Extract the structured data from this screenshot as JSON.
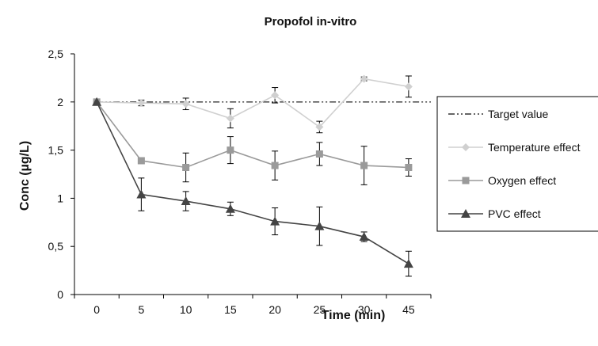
{
  "chart_data": {
    "type": "line",
    "title": "Propofol in-vitro",
    "xlabel": "Time (min)",
    "ylabel": "Conc (µg/L)",
    "categories": [
      "0",
      "5",
      "10",
      "15",
      "20",
      "25",
      "30",
      "45"
    ],
    "y_ticks": [
      "0",
      "0,5",
      "1",
      "1,5",
      "2",
      "2,5"
    ],
    "ylim": [
      0,
      2.5
    ],
    "grid": false,
    "legend_position": "right",
    "series": [
      {
        "name": "Target value",
        "style": "dash-dot",
        "color": "#333333",
        "values": [
          2,
          2,
          2,
          2,
          2,
          2,
          2,
          2
        ],
        "errors": null
      },
      {
        "name": "Temperature effect",
        "marker": "diamond",
        "color": "#d0d0d0",
        "values": [
          2.0,
          1.99,
          1.98,
          1.83,
          2.07,
          1.74,
          2.24,
          2.16
        ],
        "errors": [
          0,
          0.03,
          0.06,
          0.1,
          0.08,
          0.06,
          0.02,
          0.11
        ]
      },
      {
        "name": "Oxygen effect",
        "marker": "square",
        "color": "#9a9a9a",
        "values": [
          2.0,
          1.39,
          1.32,
          1.5,
          1.34,
          1.46,
          1.34,
          1.32
        ],
        "errors": [
          0,
          0.03,
          0.15,
          0.14,
          0.15,
          0.12,
          0.2,
          0.09
        ]
      },
      {
        "name": "PVC effect",
        "marker": "triangle",
        "color": "#444444",
        "values": [
          2.0,
          1.04,
          0.97,
          0.89,
          0.76,
          0.71,
          0.6,
          0.32
        ],
        "errors": [
          0,
          0.17,
          0.1,
          0.07,
          0.14,
          0.2,
          0.05,
          0.13
        ]
      }
    ]
  }
}
